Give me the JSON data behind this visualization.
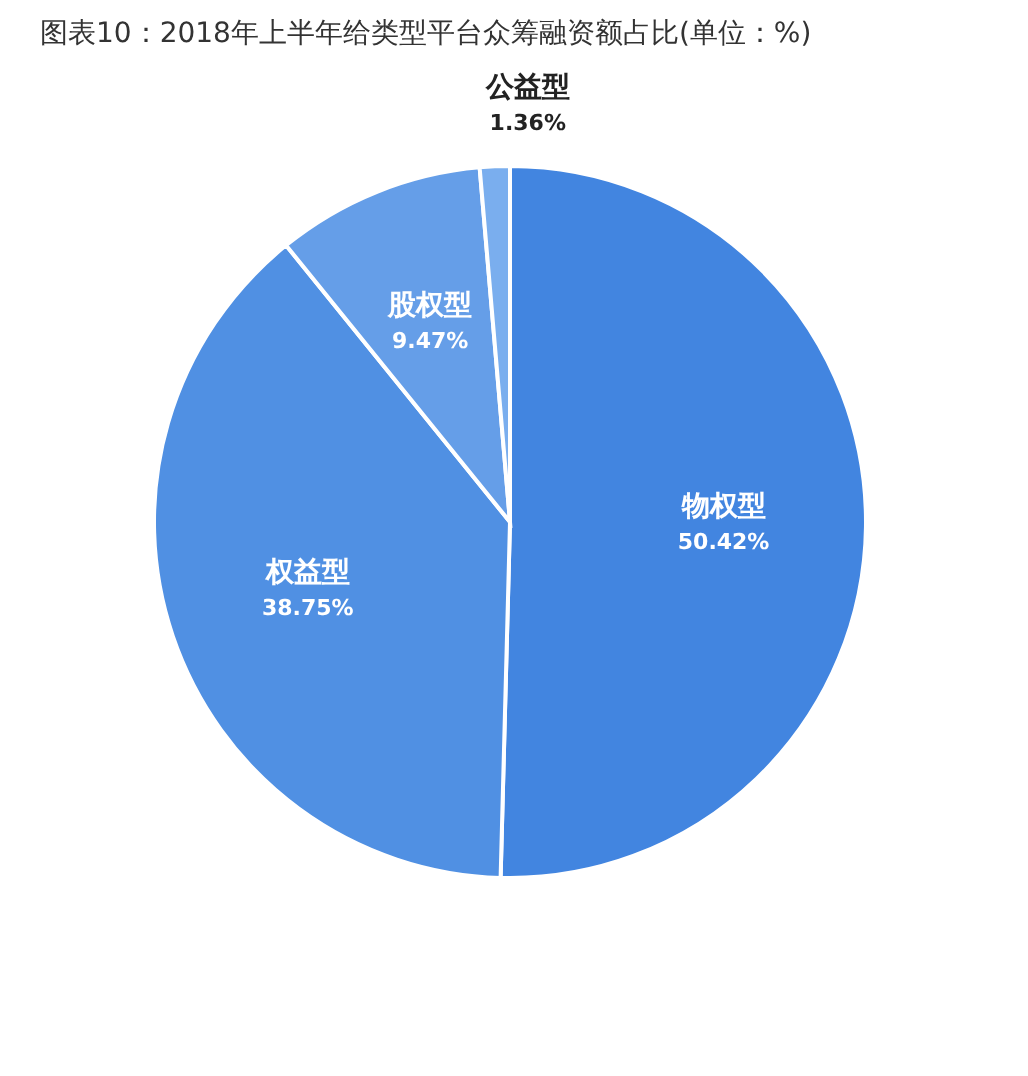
{
  "chart_data": {
    "type": "pie",
    "title": "图表10：2018年上半年给类型平台众筹融资额占比(单位：%)",
    "categories": [
      "物权型",
      "权益型",
      "股权型",
      "公益型"
    ],
    "values": [
      50.42,
      38.75,
      9.47,
      1.36
    ],
    "colors": [
      "#4285e0",
      "#5090e3",
      "#659ee8",
      "#7aaeee"
    ],
    "value_labels": [
      "50.42%",
      "38.75%",
      "9.47%",
      "1.36%"
    ],
    "legend": false
  }
}
